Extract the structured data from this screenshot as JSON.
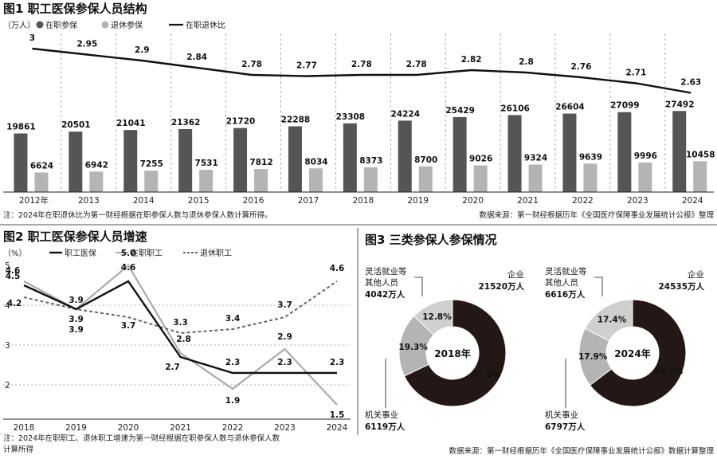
{
  "colors": {
    "dark": "#555555",
    "light": "#b4b4b4",
    "line": "#111111",
    "grid": "#9a9a9a",
    "donutDark": "#231816",
    "donutMid": "#b4b4b4",
    "donutLight": "#cfcfcf"
  },
  "chart_data": [
    {
      "type": "bar",
      "title": "图1 职工医保参保人员结构",
      "unit": "（万人）",
      "categories": [
        "2012年",
        "2013",
        "2014",
        "2015",
        "2016",
        "2017",
        "2018",
        "2019",
        "2020",
        "2021",
        "2022",
        "2023",
        "2024"
      ],
      "series": [
        {
          "name": "在职参保",
          "values": [
            19861,
            20501,
            21041,
            21362,
            21720,
            22288,
            23308,
            24224,
            25429,
            26106,
            26604,
            27099,
            27492
          ]
        },
        {
          "name": "退休参保",
          "values": [
            6624,
            6942,
            7255,
            7531,
            7812,
            8034,
            8373,
            8700,
            9026,
            9324,
            9639,
            9996,
            10458
          ]
        },
        {
          "name": "在职退休比",
          "type": "line",
          "values": [
            3,
            2.95,
            2.9,
            2.84,
            2.78,
            2.77,
            2.78,
            2.78,
            2.82,
            2.8,
            2.76,
            2.71,
            2.63
          ],
          "labels": [
            "3",
            "2.95",
            "2.9",
            "2.84",
            "2.78",
            "2.77",
            "2.78",
            "2.78",
            "2.82",
            "2.8",
            "2.76",
            "2.71",
            "2.63"
          ]
        }
      ],
      "bar_ylim": [
        0,
        50000
      ],
      "ratio_ylim": [
        2.3,
        3.1
      ],
      "note": "注：2024年在职退休比为第一财经根据在职参保人数与退休参保人数计算所得。",
      "source": "数据来源：第一财经根据历年《全国医疗保障事业发展统计公报》整理"
    },
    {
      "type": "line",
      "title": "图2 职工医保参保人员增速",
      "unit": "（%）",
      "x": [
        "2018",
        "2019",
        "2020",
        "2021",
        "2022",
        "2023",
        "2024"
      ],
      "yticks": [
        "5",
        "4",
        "3",
        "2"
      ],
      "ylim": [
        1,
        5
      ],
      "series": [
        {
          "name": "职工医保",
          "values": [
            4.5,
            3.9,
            4.6,
            2.7,
            2.3,
            2.3,
            2.3
          ],
          "labels": [
            "4.5",
            "3.9",
            "4.6",
            "2.7",
            "2.3",
            "2.3",
            "2.3"
          ]
        },
        {
          "name": "在职职工",
          "values": [
            4.6,
            3.9,
            5.0,
            2.8,
            1.9,
            2.9,
            1.5
          ],
          "labels": [
            "4.6",
            "3.9",
            "5.0",
            "2.8",
            "1.9",
            "2.9",
            "1.5"
          ]
        },
        {
          "name": "退休职工",
          "values": [
            4.2,
            3.9,
            3.7,
            3.3,
            3.4,
            3.7,
            4.6
          ],
          "labels": [
            "4.2",
            "3.9",
            "3.7",
            "3.3",
            "3.4",
            "3.7",
            "4.6"
          ]
        }
      ],
      "note_lines": [
        "注：2024年在职职工、退休职工增速为第一财经根据在职参保人数与退休参保人数",
        "计算所得"
      ]
    },
    {
      "type": "pie",
      "title": "图3 三类参保人参保情况",
      "source": "数据来源：第一财经根据历年《全国医疗保障事业发展统计公报》数据计算整理",
      "charts": [
        {
          "center": "2018年",
          "slices": [
            {
              "name": "企业",
              "amount": "21520",
              "unit": "万人",
              "pct": 67.9,
              "label": "67.9%"
            },
            {
              "name": "机关事业",
              "amount": "6119",
              "unit": "万人",
              "pct": 19.3,
              "label": "19.3%"
            },
            {
              "name_lines": [
                "灵活就业等",
                "其他人员"
              ],
              "amount": "4042",
              "unit": "万人",
              "pct": 12.8,
              "label": "12.8%"
            }
          ]
        },
        {
          "center": "2024年",
          "slices": [
            {
              "name": "企业",
              "amount": "24535",
              "unit": "万人",
              "pct": 64.7,
              "label": "64.7%"
            },
            {
              "name": "机关事业",
              "amount": "6797",
              "unit": "万人",
              "pct": 17.9,
              "label": "17.9%"
            },
            {
              "name_lines": [
                "灵活就业等",
                "其他人员"
              ],
              "amount": "6616",
              "unit": "万人",
              "pct": 17.4,
              "label": "17.4%"
            }
          ]
        }
      ]
    }
  ]
}
